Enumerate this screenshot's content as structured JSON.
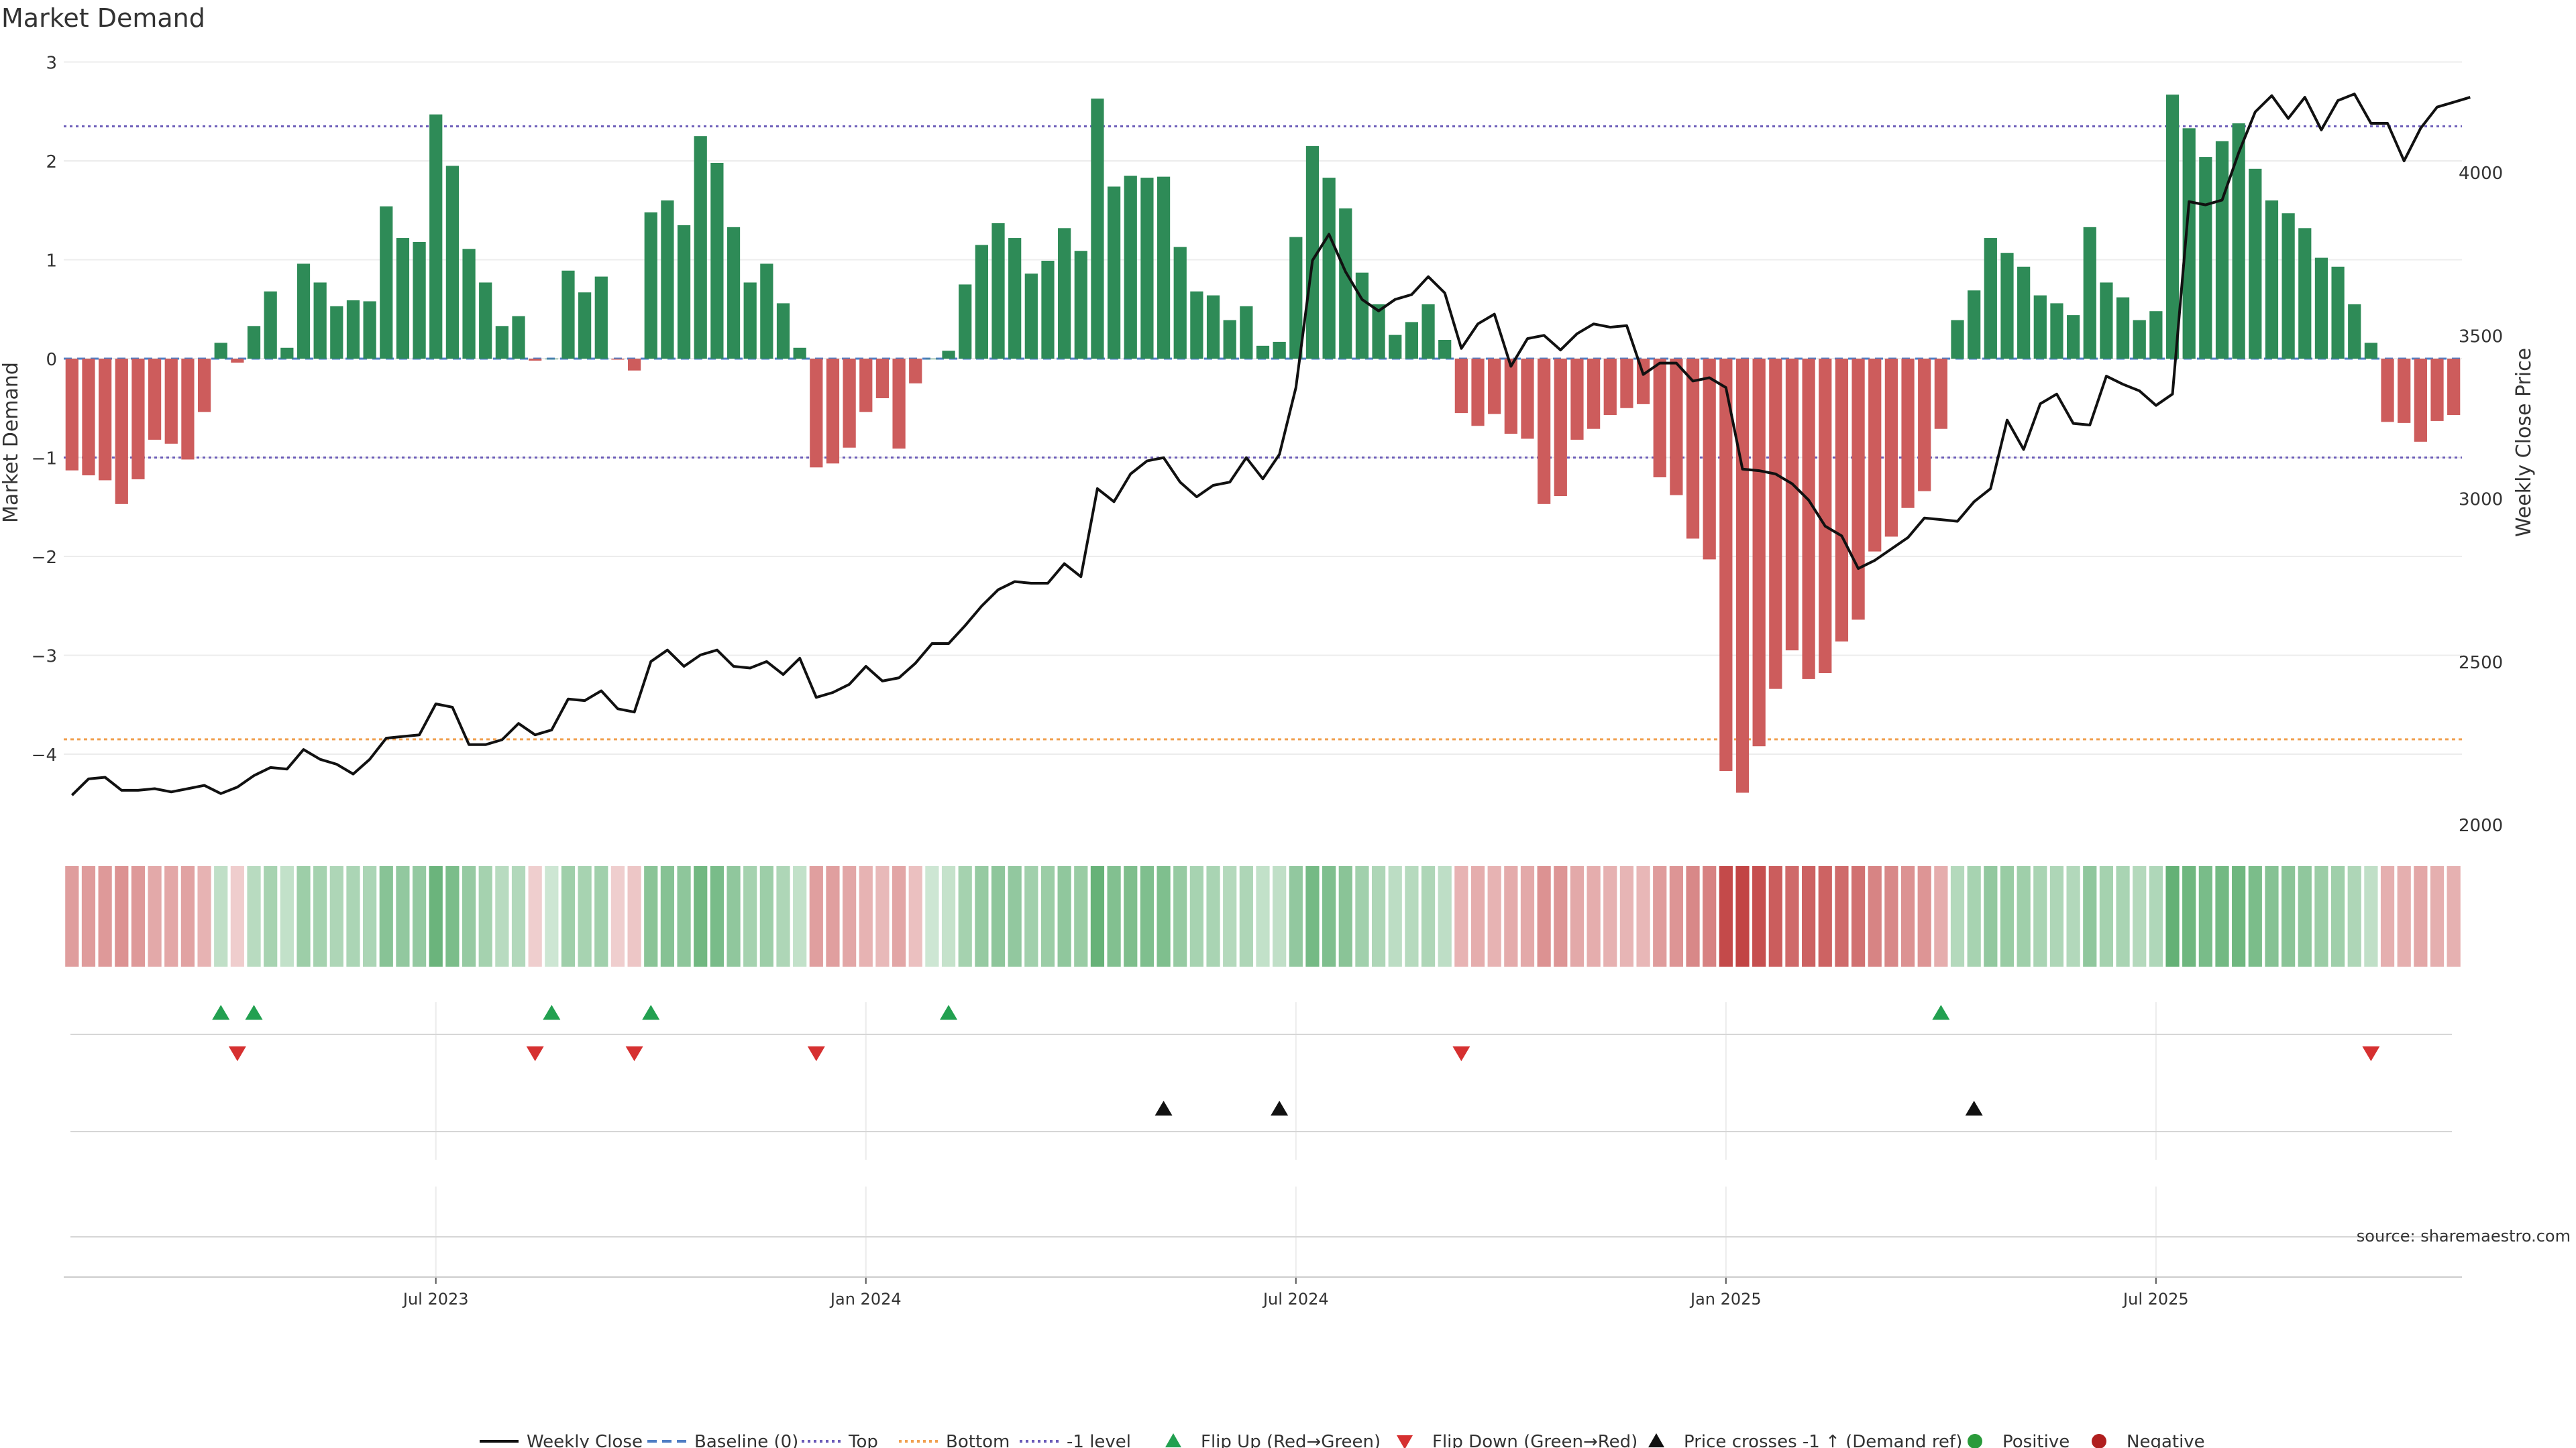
{
  "chart_data": {
    "type": "bar+line",
    "title": "Market Demand",
    "ylabel_left": "Market Demand",
    "ylabel_right": "Weekly Close Price",
    "ylim_left": [
      -4.75,
      3.0
    ],
    "ylim_right": [
      2000,
      4300
    ],
    "yticks_left": [
      3,
      2,
      1,
      0,
      -1,
      -2,
      -3,
      -4
    ],
    "yticks_left_labels": [
      "3",
      "2",
      "1",
      "0",
      "−1",
      "−2",
      "−3",
      "−4"
    ],
    "yticks_right": [
      2000,
      2500,
      3000,
      3500,
      4000
    ],
    "yticks_right_labels": [
      "2000",
      "2500",
      "3000",
      "3500",
      "4000"
    ],
    "x_start_week": 0,
    "x_end_week": 144,
    "xtick_weeks": [
      22,
      48,
      74,
      100,
      126
    ],
    "xtick_labels": [
      "Jul 2023",
      "Jan 2024",
      "Jul 2024",
      "Jan 2025",
      "Jul 2025"
    ],
    "reference_lines": {
      "top": 2.35,
      "bottom": -3.85,
      "minus_one": -1.0,
      "baseline": 0
    },
    "demand": [
      -1.13,
      -1.18,
      -1.23,
      -1.47,
      -1.22,
      -0.82,
      -0.86,
      -1.02,
      -0.54,
      0.16,
      -0.04,
      0.33,
      0.68,
      0.11,
      0.96,
      0.77,
      0.53,
      0.59,
      0.58,
      1.54,
      1.22,
      1.18,
      2.47,
      1.95,
      1.11,
      0.77,
      0.33,
      0.43,
      -0.02,
      0.0,
      0.89,
      0.67,
      0.83,
      -0.01,
      -0.12,
      1.48,
      1.6,
      1.35,
      2.25,
      1.98,
      1.33,
      0.77,
      0.96,
      0.56,
      0.11,
      -1.1,
      -1.06,
      -0.9,
      -0.54,
      -0.4,
      -0.91,
      -0.25,
      0.0,
      0.08,
      0.75,
      1.15,
      1.37,
      1.22,
      0.86,
      0.99,
      1.32,
      1.09,
      2.63,
      1.74,
      1.85,
      1.83,
      1.84,
      1.13,
      0.68,
      0.64,
      0.39,
      0.53,
      0.13,
      0.17,
      1.23,
      2.15,
      1.83,
      1.52,
      0.87,
      0.55,
      0.24,
      0.37,
      0.55,
      0.19,
      -0.55,
      -0.68,
      -0.56,
      -0.76,
      -0.81,
      -1.47,
      -1.39,
      -0.82,
      -0.71,
      -0.57,
      -0.5,
      -0.46,
      -1.2,
      -1.38,
      -1.82,
      -2.03,
      -4.17,
      -4.39,
      -3.92,
      -3.34,
      -2.95,
      -3.24,
      -3.18,
      -2.86,
      -2.64,
      -1.95,
      -1.8,
      -1.51,
      -1.34,
      -0.71,
      0.39,
      0.69,
      1.22,
      1.07,
      0.93,
      0.64,
      0.56,
      0.44,
      1.33,
      0.77,
      0.62,
      0.39,
      0.48,
      2.67,
      2.33,
      2.04,
      2.2,
      2.38,
      1.92,
      1.6,
      1.47,
      1.32,
      1.02,
      0.93,
      0.55,
      0.16,
      -0.64,
      -0.65,
      -0.84,
      -0.63,
      -0.57
    ],
    "series": [
      {
        "name": "Weekly Close",
        "values": [
          2090,
          2140,
          2145,
          2105,
          2105,
          2110,
          2100,
          2110,
          2120,
          2095,
          2115,
          2150,
          2175,
          2170,
          2230,
          2200,
          2185,
          2155,
          2200,
          2265,
          2270,
          2275,
          2370,
          2360,
          2245,
          2245,
          2260,
          2310,
          2275,
          2290,
          2385,
          2380,
          2410,
          2355,
          2345,
          2500,
          2535,
          2485,
          2520,
          2535,
          2485,
          2480,
          2500,
          2460,
          2510,
          2390,
          2405,
          2430,
          2485,
          2440,
          2450,
          2495,
          2555,
          2555,
          2610,
          2670,
          2720,
          2745,
          2740,
          2740,
          2800,
          2760,
          3030,
          2990,
          3075,
          3115,
          3125,
          3050,
          3005,
          3040,
          3050,
          3125,
          3060,
          3135,
          3340,
          3730,
          3810,
          3695,
          3610,
          3575,
          3610,
          3625,
          3680,
          3630,
          3460,
          3535,
          3565,
          3405,
          3490,
          3500,
          3455,
          3505,
          3535,
          3525,
          3530,
          3380,
          3415,
          3415,
          3360,
          3370,
          3340,
          3090,
          3085,
          3075,
          3045,
          2995,
          2915,
          2885,
          2785,
          2810,
          2845,
          2880,
          2940,
          2935,
          2930,
          2990,
          3030,
          3240,
          3150,
          3290,
          3320,
          3230,
          3225,
          3375,
          3350,
          3330,
          3285,
          3320,
          3910,
          3900,
          3915,
          4060,
          4185,
          4235,
          4165,
          4230,
          4130,
          4220,
          4240,
          4150,
          4150,
          4035,
          4135,
          4200,
          4215,
          4230
        ]
      }
    ],
    "heat_strip": "weekly demand color strip (green positive / red negative, intensity by magnitude)",
    "flip_up_weeks": [
      9,
      11,
      29,
      35,
      53,
      113
    ],
    "flip_down_weeks": [
      10,
      28,
      34,
      45,
      84,
      139
    ],
    "price_cross_weeks": [
      66,
      73,
      115
    ],
    "legend": [
      {
        "label": "Weekly Close",
        "kind": "line",
        "color": "#111111"
      },
      {
        "label": "Baseline (0)",
        "kind": "dash",
        "color": "#4f7ec4"
      },
      {
        "label": "Top",
        "kind": "dot",
        "color": "#6a5bb8"
      },
      {
        "label": "Bottom",
        "kind": "dot",
        "color": "#f0a050"
      },
      {
        "label": "-1 level",
        "kind": "dot",
        "color": "#6a5bb8"
      },
      {
        "label": "Flip Up (Red→Green)",
        "kind": "tri-up",
        "color": "#22a050"
      },
      {
        "label": "Flip Down (Green→Red)",
        "kind": "tri-down",
        "color": "#d63030"
      },
      {
        "label": "Price crosses -1 ↑ (Demand ref)",
        "kind": "tri-up",
        "color": "#111111"
      },
      {
        "label": "Positive",
        "kind": "dot-marker",
        "color": "#2a9a3a"
      },
      {
        "label": "Negative",
        "kind": "dot-marker",
        "color": "#b01e1e"
      }
    ],
    "source": "source: sharemaestro.com",
    "colors": {
      "positive_bar": "#2e8b57",
      "negative_bar": "#cd5c5c",
      "line": "#111111",
      "grid": "#ececec",
      "top_line": "#6a5bb8",
      "bottom_line": "#f0a050",
      "baseline": "#4f7ec4"
    }
  }
}
